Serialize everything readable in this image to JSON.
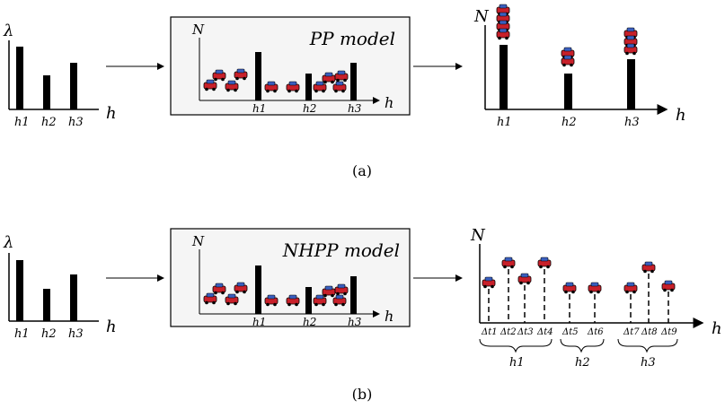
{
  "panel_a": {
    "caption": "(a)",
    "input_y_label": "λ",
    "input_x_label": "h",
    "input_ticks": [
      "h1",
      "h2",
      "h3"
    ],
    "model_title": "PP model",
    "model_y_label": "N",
    "model_x_label": "h",
    "model_ticks": [
      "h1",
      "h2",
      "h3"
    ],
    "output_y_label": "N",
    "output_x_label": "h",
    "output_ticks": [
      "h1",
      "h2",
      "h3"
    ]
  },
  "panel_b": {
    "caption": "(b)",
    "input_y_label": "λ",
    "input_x_label": "h",
    "input_ticks": [
      "h1",
      "h2",
      "h3"
    ],
    "model_title": "NHPP model",
    "model_y_label": "N",
    "model_x_label": "h",
    "model_ticks": [
      "h1",
      "h2",
      "h3"
    ],
    "output_y_label": "N",
    "output_x_label": "h",
    "dt_labels": [
      "Δt1",
      "Δt2",
      "Δt3",
      "Δt4",
      "Δt5",
      "Δt6",
      "Δt7",
      "Δt8",
      "Δt9"
    ],
    "groups": [
      "h1",
      "h2",
      "h3"
    ]
  },
  "colors": {
    "ink": "#000000",
    "box_bg": "#f5f5f5",
    "car_body": "#c8202a",
    "car_window": "#3a5fc0"
  },
  "icons": {
    "vehicle": "car-icon"
  }
}
